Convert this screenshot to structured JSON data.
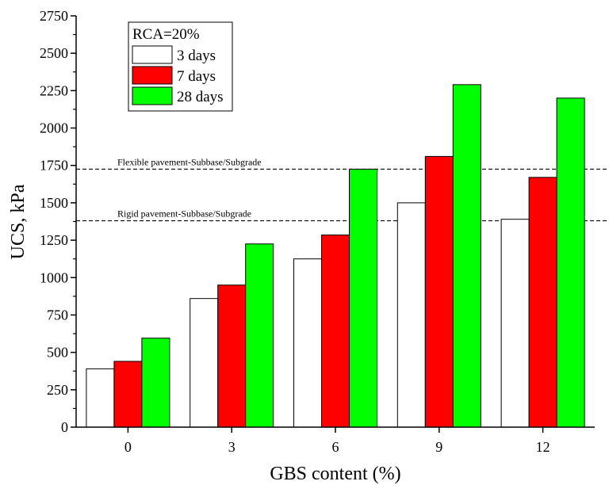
{
  "chart_data": {
    "type": "bar",
    "xlabel": "GBS content (%)",
    "ylabel": "UCS, kPa",
    "categories": [
      "0",
      "3",
      "6",
      "9",
      "12"
    ],
    "ylim": [
      0,
      2750
    ],
    "yticks": [
      0,
      250,
      500,
      750,
      1000,
      1250,
      1500,
      1750,
      2000,
      2250,
      2500,
      2750
    ],
    "legend": {
      "title": "RCA=20%",
      "placement": "top-left"
    },
    "series": [
      {
        "name": "3 days",
        "color": "#ffffff",
        "values": [
          390,
          860,
          1125,
          1500,
          1390
        ]
      },
      {
        "name": "7 days",
        "color": "#ff0000",
        "values": [
          440,
          950,
          1285,
          1810,
          1670
        ]
      },
      {
        "name": "28 days",
        "color": "#00ff00",
        "values": [
          595,
          1225,
          1725,
          2290,
          2200
        ]
      }
    ],
    "reference_lines": [
      {
        "label": "Flexible pavement-Subbase/Subgrade",
        "y": 1725
      },
      {
        "label": "Rigid pavement-Subbase/Subgrade",
        "y": 1380
      }
    ],
    "grid": false
  }
}
